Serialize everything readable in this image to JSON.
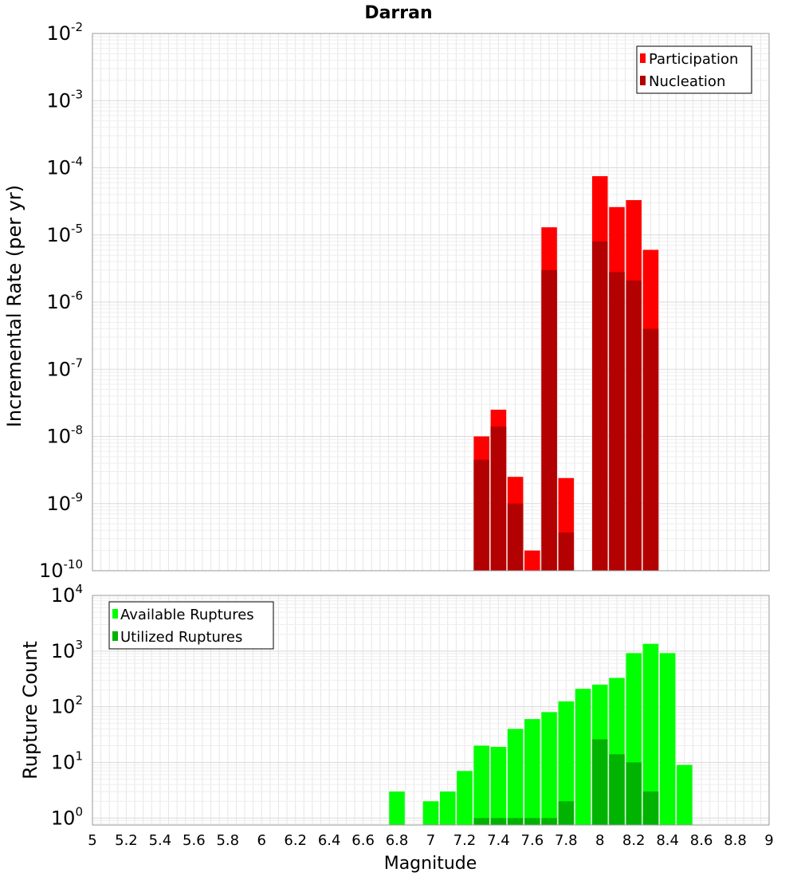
{
  "title": "Darran",
  "chart_data": [
    {
      "type": "bar",
      "ylabel": "Incremental Rate (per yr)",
      "yscale": "log",
      "ylim": [
        1e-10,
        0.01
      ],
      "xlim": [
        5,
        9
      ],
      "grid": true,
      "legend_position": "top-right",
      "series": [
        {
          "name": "Participation",
          "color": "#ff0000",
          "x": [
            7.3,
            7.4,
            7.5,
            7.6,
            7.7,
            7.8,
            8.0,
            8.1,
            8.2,
            8.3
          ],
          "values": [
            1e-08,
            2.5e-08,
            2.5e-09,
            2e-10,
            1.3e-05,
            2.4e-09,
            7.5e-05,
            2.6e-05,
            3.3e-05,
            6e-06
          ]
        },
        {
          "name": "Nucleation",
          "color": "#b30000",
          "x": [
            7.3,
            7.4,
            7.5,
            7.7,
            7.8,
            8.0,
            8.1,
            8.2,
            8.3
          ],
          "values": [
            4.5e-09,
            1.4e-08,
            1e-09,
            3e-06,
            3.7e-10,
            8e-06,
            2.8e-06,
            2.1e-06,
            4e-07
          ]
        }
      ],
      "y_ticks": [
        "10-10",
        "10-9",
        "10-8",
        "10-7",
        "10-6",
        "10-5",
        "10-4",
        "10-3",
        "10-2"
      ]
    },
    {
      "type": "bar",
      "xlabel": "Magnitude",
      "ylabel": "Rupture Count",
      "yscale": "log",
      "ylim": [
        0.75,
        10000
      ],
      "xlim": [
        5,
        9
      ],
      "grid": true,
      "legend_position": "top-left",
      "series": [
        {
          "name": "Available Ruptures",
          "color": "#00ff00",
          "x": [
            6.8,
            7.0,
            7.1,
            7.2,
            7.3,
            7.4,
            7.5,
            7.6,
            7.7,
            7.8,
            7.9,
            8.0,
            8.1,
            8.2,
            8.3,
            8.4,
            8.5
          ],
          "values": [
            3,
            2,
            3,
            7,
            20,
            19,
            40,
            60,
            80,
            125,
            210,
            250,
            330,
            920,
            1350,
            920,
            9
          ]
        },
        {
          "name": "Utilized Ruptures",
          "color": "#00b300",
          "x": [
            7.3,
            7.4,
            7.5,
            7.6,
            7.7,
            7.8,
            8.0,
            8.1,
            8.2,
            8.3
          ],
          "values": [
            1,
            1,
            1,
            1,
            1,
            2,
            26,
            14,
            10,
            3
          ]
        }
      ],
      "x_ticks": [
        "5",
        "5.2",
        "5.4",
        "5.6",
        "5.8",
        "6",
        "6.2",
        "6.4",
        "6.6",
        "6.8",
        "7",
        "7.2",
        "7.4",
        "7.6",
        "7.8",
        "8",
        "8.2",
        "8.4",
        "8.6",
        "8.8",
        "9"
      ],
      "y_ticks": [
        "100",
        "101",
        "102",
        "103",
        "104"
      ]
    }
  ]
}
